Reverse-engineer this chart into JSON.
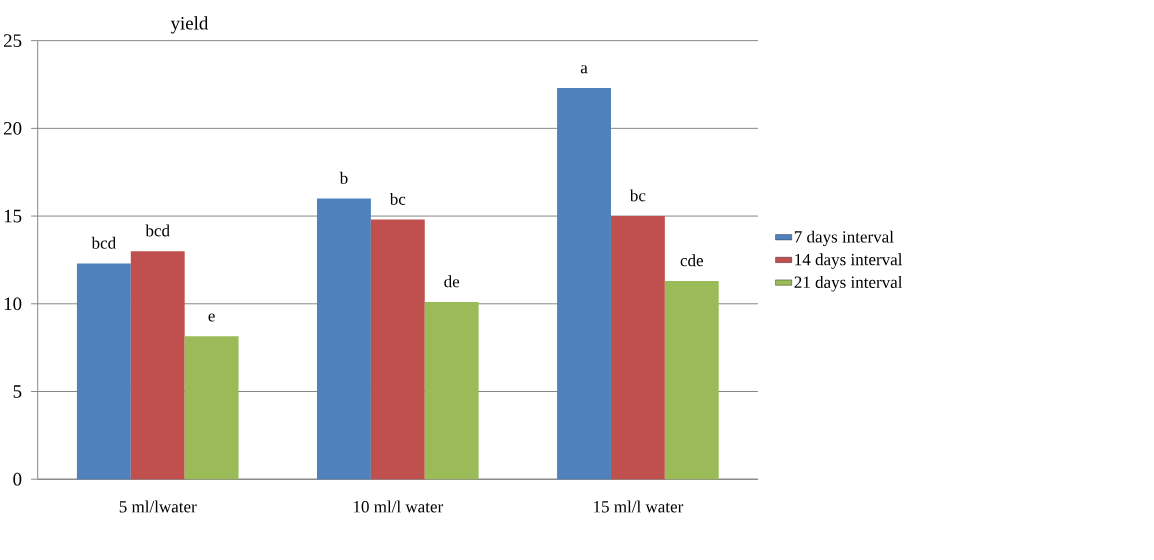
{
  "chart_data": {
    "type": "bar",
    "ylabel": "yield",
    "categories": [
      "5 ml/lwater",
      "10 ml/l water",
      "15 ml/l water"
    ],
    "series": [
      {
        "name": "7 days interval",
        "color": "#4f81bd",
        "values": [
          12.3,
          16.0,
          22.3
        ],
        "value_labels": [
          "bcd",
          "b",
          "a"
        ]
      },
      {
        "name": "14 days interval",
        "color": "#c0504d",
        "values": [
          13.0,
          14.8,
          15.0
        ],
        "value_labels": [
          "bcd",
          "bc",
          "bc"
        ]
      },
      {
        "name": "21 days interval",
        "color": "#9bbb59",
        "values": [
          8.15,
          10.1,
          11.3
        ],
        "value_labels": [
          "e",
          "de",
          "cde"
        ]
      }
    ],
    "ylim": [
      0,
      25
    ],
    "yticks": [
      0,
      5,
      10,
      15,
      20,
      25
    ],
    "grid": "y",
    "legend": "right"
  }
}
